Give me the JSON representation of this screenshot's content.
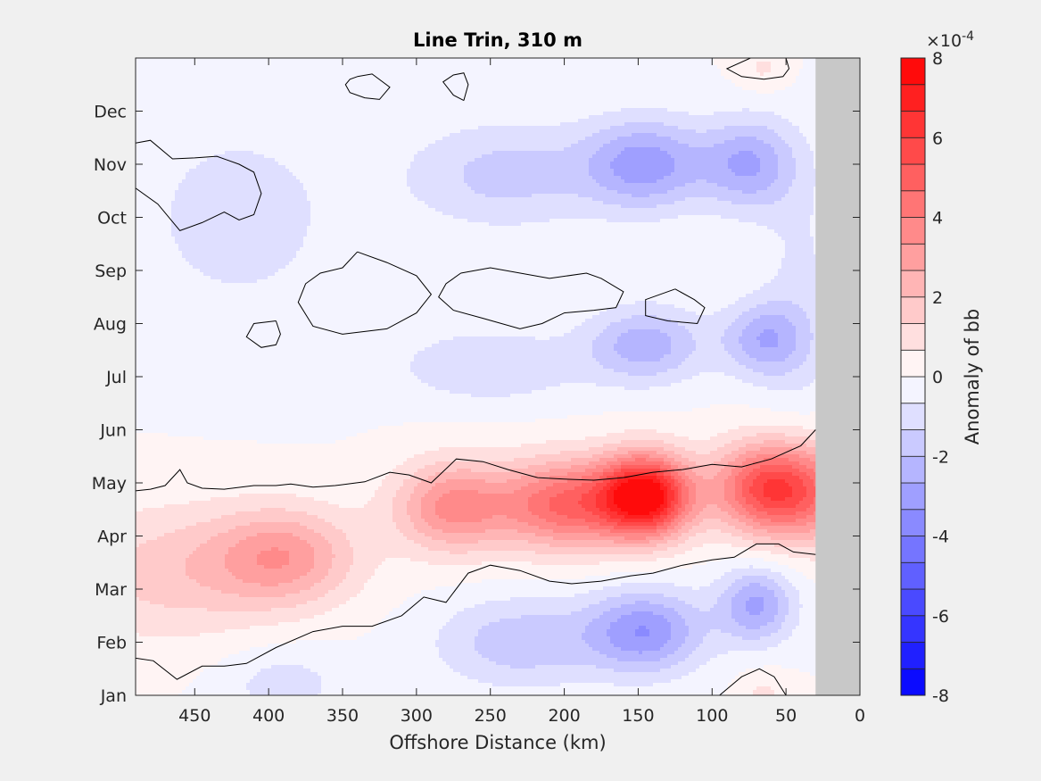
{
  "chart_data": {
    "type": "heatmap",
    "title": "Line Trin, 310 m",
    "xlabel": "Offshore Distance (km)",
    "ylabel": "",
    "xlim": [
      490,
      0
    ],
    "x_reversed": true,
    "xticks": [
      450,
      400,
      350,
      300,
      250,
      200,
      150,
      100,
      50,
      0
    ],
    "xtick_labels": [
      "450",
      "400",
      "350",
      "300",
      "250",
      "200",
      "150",
      "100",
      "50",
      "0"
    ],
    "ylim": [
      1,
      13
    ],
    "yticks": [
      1,
      2,
      3,
      4,
      5,
      6,
      7,
      8,
      9,
      10,
      11,
      12
    ],
    "ytick_labels": [
      "Jan",
      "Feb",
      "Mar",
      "Apr",
      "May",
      "Jun",
      "Jul",
      "Aug",
      "Sep",
      "Oct",
      "Nov",
      "Dec"
    ],
    "masked_region_km": [
      30,
      0
    ],
    "mask_color": "#c8c8c8",
    "colorbar": {
      "label": "Anomaly of bb",
      "exponent_label": "×10",
      "exponent": "-4",
      "range": [
        -8,
        8
      ],
      "levels": 24,
      "ticks": [
        8,
        6,
        4,
        2,
        0,
        -2,
        -4,
        -6,
        -8
      ],
      "tick_labels": [
        "8",
        "6",
        "4",
        "2",
        "0",
        "-2",
        "-4",
        "-6",
        "-8"
      ],
      "low_color": "#0000ff",
      "mid_color": "#ffffff",
      "high_color": "#ff0000"
    },
    "field_components": [
      {
        "km": 145,
        "month": 4.75,
        "amp": 8.0,
        "skm": 22,
        "smo": 0.55
      },
      {
        "km": 65,
        "month": 4.9,
        "amp": 5.0,
        "skm": 25,
        "smo": 0.6
      },
      {
        "km": 200,
        "month": 4.6,
        "amp": 4.6,
        "skm": 30,
        "smo": 0.6
      },
      {
        "km": 275,
        "month": 4.55,
        "amp": 3.6,
        "skm": 28,
        "smo": 0.6
      },
      {
        "km": 390,
        "month": 3.6,
        "amp": 3.0,
        "skm": 35,
        "smo": 0.65
      },
      {
        "km": 470,
        "month": 3.3,
        "amp": 1.6,
        "skm": 50,
        "smo": 0.9
      },
      {
        "km": 30,
        "month": 4.8,
        "amp": 3.0,
        "skm": 25,
        "smo": 0.7
      },
      {
        "km": 145,
        "month": 2.2,
        "amp": -3.2,
        "skm": 28,
        "smo": 0.55
      },
      {
        "km": 70,
        "month": 2.7,
        "amp": -2.8,
        "skm": 18,
        "smo": 0.5
      },
      {
        "km": 230,
        "month": 2.0,
        "amp": -1.8,
        "skm": 40,
        "smo": 0.6
      },
      {
        "km": 390,
        "month": 1.2,
        "amp": -1.0,
        "skm": 30,
        "smo": 0.5
      },
      {
        "km": 145,
        "month": 11.0,
        "amp": -3.0,
        "skm": 30,
        "smo": 0.6
      },
      {
        "km": 75,
        "month": 11.0,
        "amp": -2.6,
        "skm": 22,
        "smo": 0.6
      },
      {
        "km": 240,
        "month": 10.8,
        "amp": -1.6,
        "skm": 45,
        "smo": 0.7
      },
      {
        "km": 145,
        "month": 7.6,
        "amp": -2.4,
        "skm": 28,
        "smo": 0.5
      },
      {
        "km": 65,
        "month": 7.7,
        "amp": -2.4,
        "skm": 20,
        "smo": 0.5
      },
      {
        "km": 250,
        "month": 7.2,
        "amp": -1.3,
        "skm": 45,
        "smo": 0.5
      },
      {
        "km": 420,
        "month": 10.0,
        "amp": -0.9,
        "skm": 60,
        "smo": 1.6
      },
      {
        "km": 40,
        "month": 8.5,
        "amp": -0.8,
        "skm": 20,
        "smo": 2.0
      },
      {
        "km": 65,
        "month": 12.8,
        "amp": 0.8,
        "skm": 12,
        "smo": 0.3
      },
      {
        "km": 65,
        "month": 1.05,
        "amp": 0.8,
        "skm": 12,
        "smo": 0.3
      }
    ],
    "zero_contours": [
      [
        [
          490,
          4.85
        ],
        [
          480,
          4.88
        ],
        [
          470,
          4.95
        ],
        [
          460,
          5.25
        ],
        [
          455,
          5.0
        ],
        [
          445,
          4.9
        ],
        [
          430,
          4.88
        ],
        [
          410,
          4.95
        ],
        [
          395,
          4.95
        ],
        [
          385,
          4.98
        ],
        [
          370,
          4.92
        ],
        [
          355,
          4.95
        ],
        [
          335,
          5.02
        ],
        [
          318,
          5.2
        ],
        [
          305,
          5.15
        ],
        [
          290,
          5.0
        ],
        [
          273,
          5.45
        ],
        [
          255,
          5.4
        ],
        [
          238,
          5.25
        ],
        [
          218,
          5.1
        ],
        [
          200,
          5.07
        ],
        [
          180,
          5.05
        ],
        [
          160,
          5.1
        ],
        [
          140,
          5.2
        ],
        [
          120,
          5.25
        ],
        [
          100,
          5.35
        ],
        [
          80,
          5.3
        ],
        [
          60,
          5.45
        ],
        [
          40,
          5.7
        ],
        [
          30,
          6.0
        ]
      ],
      [
        [
          490,
          1.7
        ],
        [
          478,
          1.65
        ],
        [
          462,
          1.3
        ],
        [
          445,
          1.55
        ],
        [
          430,
          1.55
        ],
        [
          415,
          1.6
        ],
        [
          395,
          1.9
        ],
        [
          370,
          2.2
        ],
        [
          350,
          2.3
        ],
        [
          330,
          2.3
        ],
        [
          310,
          2.5
        ],
        [
          295,
          2.85
        ],
        [
          280,
          2.75
        ],
        [
          265,
          3.3
        ],
        [
          250,
          3.45
        ],
        [
          230,
          3.35
        ],
        [
          210,
          3.15
        ],
        [
          195,
          3.1
        ],
        [
          175,
          3.15
        ],
        [
          155,
          3.25
        ],
        [
          140,
          3.3
        ],
        [
          120,
          3.45
        ],
        [
          100,
          3.55
        ],
        [
          85,
          3.6
        ],
        [
          70,
          3.85
        ],
        [
          55,
          3.85
        ],
        [
          45,
          3.7
        ],
        [
          30,
          3.65
        ]
      ],
      [
        [
          490,
          11.4
        ],
        [
          480,
          11.45
        ],
        [
          465,
          11.1
        ],
        [
          450,
          11.12
        ],
        [
          435,
          11.15
        ],
        [
          420,
          11.0
        ],
        [
          410,
          10.85
        ],
        [
          405,
          10.45
        ],
        [
          410,
          10.05
        ],
        [
          420,
          9.95
        ],
        [
          430,
          10.1
        ],
        [
          445,
          9.9
        ],
        [
          460,
          9.75
        ],
        [
          475,
          10.25
        ],
        [
          490,
          10.55
        ]
      ],
      [
        [
          340,
          12.65
        ],
        [
          330,
          12.7
        ],
        [
          318,
          12.45
        ],
        [
          325,
          12.22
        ],
        [
          335,
          12.25
        ],
        [
          345,
          12.35
        ],
        [
          348,
          12.5
        ],
        [
          345,
          12.6
        ],
        [
          340,
          12.65
        ]
      ],
      [
        [
          268,
          12.2
        ],
        [
          275,
          12.3
        ],
        [
          282,
          12.55
        ],
        [
          275,
          12.68
        ],
        [
          268,
          12.72
        ],
        [
          265,
          12.5
        ],
        [
          268,
          12.2
        ]
      ],
      [
        [
          74,
          13.0
        ],
        [
          90,
          12.8
        ],
        [
          80,
          12.65
        ],
        [
          65,
          12.6
        ],
        [
          52,
          12.65
        ],
        [
          48,
          12.8
        ],
        [
          50,
          13.0
        ]
      ],
      [
        [
          395,
          8.05
        ],
        [
          410,
          8.0
        ],
        [
          415,
          7.75
        ],
        [
          405,
          7.55
        ],
        [
          395,
          7.6
        ],
        [
          392,
          7.8
        ],
        [
          395,
          8.05
        ]
      ],
      [
        [
          340,
          9.35
        ],
        [
          320,
          9.15
        ],
        [
          300,
          8.9
        ],
        [
          290,
          8.55
        ],
        [
          300,
          8.2
        ],
        [
          320,
          7.9
        ],
        [
          350,
          7.8
        ],
        [
          370,
          7.95
        ],
        [
          380,
          8.4
        ],
        [
          375,
          8.75
        ],
        [
          365,
          8.95
        ],
        [
          350,
          9.05
        ],
        [
          340,
          9.35
        ]
      ],
      [
        [
          270,
          8.95
        ],
        [
          250,
          9.05
        ],
        [
          210,
          8.85
        ],
        [
          185,
          8.95
        ],
        [
          175,
          8.85
        ],
        [
          160,
          8.6
        ],
        [
          165,
          8.3
        ],
        [
          180,
          8.25
        ],
        [
          200,
          8.2
        ],
        [
          215,
          8.0
        ],
        [
          230,
          7.9
        ],
        [
          255,
          8.1
        ],
        [
          275,
          8.25
        ],
        [
          285,
          8.5
        ],
        [
          280,
          8.75
        ],
        [
          270,
          8.95
        ]
      ],
      [
        [
          125,
          8.65
        ],
        [
          145,
          8.45
        ],
        [
          145,
          8.15
        ],
        [
          130,
          8.05
        ],
        [
          110,
          8.0
        ],
        [
          105,
          8.3
        ],
        [
          112,
          8.45
        ],
        [
          125,
          8.65
        ]
      ],
      [
        [
          95,
          1.0
        ],
        [
          80,
          1.35
        ],
        [
          68,
          1.5
        ],
        [
          58,
          1.35
        ],
        [
          50,
          1.0
        ]
      ]
    ]
  }
}
